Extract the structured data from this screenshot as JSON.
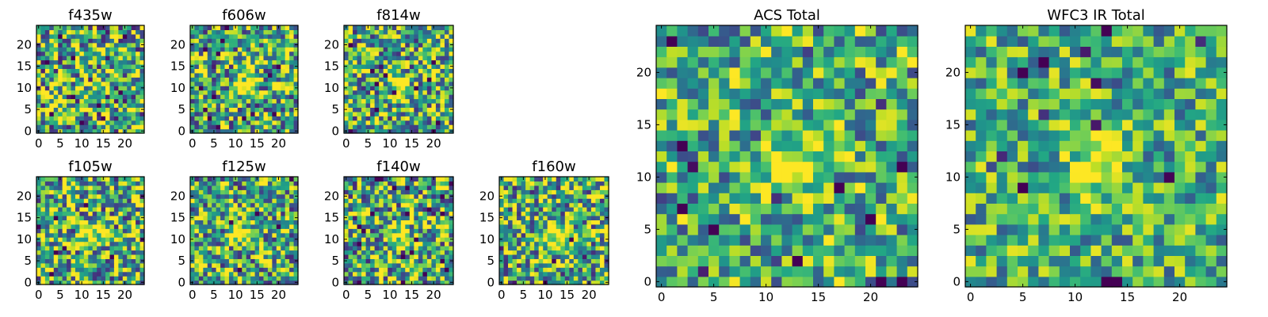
{
  "chart_data": [
    {
      "type": "heatmap",
      "title": "f435w",
      "xticks": [
        0,
        5,
        10,
        15,
        20
      ],
      "yticks": [
        0,
        5,
        10,
        15,
        20
      ],
      "xlim": [
        0,
        25
      ],
      "ylim": [
        0,
        25
      ],
      "grid": false,
      "colormap": "viridis",
      "source_center": null,
      "noise": 0.55,
      "seed": 11
    },
    {
      "type": "heatmap",
      "title": "f606w",
      "xticks": [
        0,
        5,
        10,
        15,
        20
      ],
      "yticks": [
        0,
        5,
        10,
        15,
        20
      ],
      "xlim": [
        0,
        25
      ],
      "ylim": [
        0,
        25
      ],
      "grid": false,
      "colormap": "viridis",
      "source_center": [
        12,
        11
      ],
      "noise": 0.5,
      "seed": 23
    },
    {
      "type": "heatmap",
      "title": "f814w",
      "xticks": [
        0,
        5,
        10,
        15,
        20
      ],
      "yticks": [
        0,
        5,
        10,
        15,
        20
      ],
      "xlim": [
        0,
        25
      ],
      "ylim": [
        0,
        25
      ],
      "grid": false,
      "colormap": "viridis",
      "source_center": [
        12,
        11
      ],
      "noise": 0.5,
      "seed": 37
    },
    {
      "type": "heatmap",
      "title": "f105w",
      "xticks": [
        0,
        5,
        10,
        15,
        20
      ],
      "yticks": [
        0,
        5,
        10,
        15,
        20
      ],
      "xlim": [
        0,
        25
      ],
      "ylim": [
        0,
        25
      ],
      "grid": false,
      "colormap": "viridis",
      "source_center": [
        12,
        11
      ],
      "noise": 0.5,
      "seed": 41
    },
    {
      "type": "heatmap",
      "title": "f125w",
      "xticks": [
        0,
        5,
        10,
        15,
        20
      ],
      "yticks": [
        0,
        5,
        10,
        15,
        20
      ],
      "xlim": [
        0,
        25
      ],
      "ylim": [
        0,
        25
      ],
      "grid": false,
      "colormap": "viridis",
      "source_center": [
        12,
        11
      ],
      "noise": 0.5,
      "seed": 53
    },
    {
      "type": "heatmap",
      "title": "f140w",
      "xticks": [
        0,
        5,
        10,
        15,
        20
      ],
      "yticks": [
        0,
        5,
        10,
        15,
        20
      ],
      "xlim": [
        0,
        25
      ],
      "ylim": [
        0,
        25
      ],
      "grid": false,
      "colormap": "viridis",
      "source_center": [
        12,
        11
      ],
      "noise": 0.5,
      "seed": 67
    },
    {
      "type": "heatmap",
      "title": "f160w",
      "xticks": [
        0,
        5,
        10,
        15,
        20
      ],
      "yticks": [
        0,
        5,
        10,
        15,
        20
      ],
      "xlim": [
        0,
        25
      ],
      "ylim": [
        0,
        25
      ],
      "grid": false,
      "colormap": "viridis",
      "source_center": [
        12,
        11
      ],
      "noise": 0.5,
      "seed": 79
    },
    {
      "type": "heatmap",
      "title": "ACS Total",
      "xticks": [
        0,
        5,
        10,
        15,
        20
      ],
      "yticks": [
        0,
        5,
        10,
        15,
        20
      ],
      "xlim": [
        0,
        25
      ],
      "ylim": [
        0,
        25
      ],
      "grid": false,
      "colormap": "viridis",
      "source_center": [
        12,
        11
      ],
      "noise": 0.4,
      "seed": 83
    },
    {
      "type": "heatmap",
      "title": "WFC3 IR Total",
      "xticks": [
        0,
        5,
        10,
        15,
        20
      ],
      "yticks": [
        0,
        5,
        10,
        15,
        20
      ],
      "xlim": [
        0,
        25
      ],
      "ylim": [
        0,
        25
      ],
      "grid": false,
      "colormap": "viridis",
      "source_center": [
        12,
        11
      ],
      "noise": 0.35,
      "seed": 97
    }
  ]
}
